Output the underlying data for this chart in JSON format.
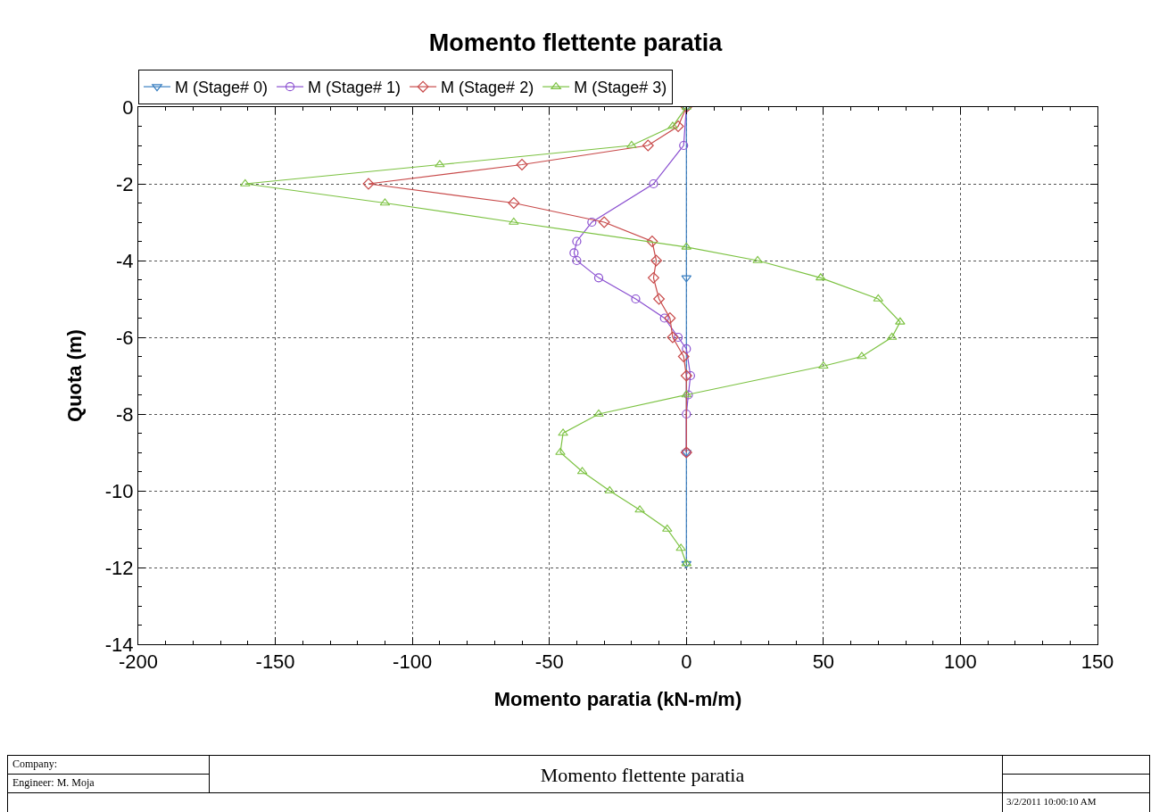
{
  "chart_data": {
    "type": "line",
    "title": "Momento flettente paratia",
    "xlabel": "Momento paratia (kN-m/m)",
    "ylabel": "Quota (m)",
    "xlim": [
      -200,
      150
    ],
    "xticks": [
      -200,
      -150,
      -100,
      -50,
      0,
      50,
      100,
      150
    ],
    "ylim": [
      -14,
      0
    ],
    "yticks": [
      -14,
      -12,
      -10,
      -8,
      -6,
      -4,
      -2,
      0
    ],
    "grid": true,
    "legend": "top",
    "line_style": "solid",
    "series": [
      {
        "name": "M (Stage# 0)",
        "color": "#3a7fc1",
        "marker": "triangle-down",
        "x": [
          0,
          0,
          0,
          0
        ],
        "values": [
          0,
          -4.45,
          -9,
          -11.9
        ]
      },
      {
        "name": "M (Stage# 1)",
        "color": "#8a4fd0",
        "marker": "circle",
        "x": [
          0,
          -1,
          -12,
          -34.5,
          -40,
          -41,
          -40,
          -32,
          -18.5,
          -8,
          -3,
          0,
          1.5,
          0.7,
          0,
          0
        ],
        "values": [
          0,
          -1,
          -2,
          -3,
          -3.5,
          -3.8,
          -4,
          -4.45,
          -5,
          -5.5,
          -6,
          -6.3,
          -7,
          -7.5,
          -8,
          -9
        ]
      },
      {
        "name": "M (Stage# 2)",
        "color": "#c84a4a",
        "marker": "diamond",
        "x": [
          0,
          -3,
          -14,
          -60,
          -116,
          -63,
          -30,
          -12.5,
          -11,
          -12,
          -10,
          -6,
          -5,
          -1,
          0,
          0
        ],
        "values": [
          0,
          -0.5,
          -1,
          -1.5,
          -2,
          -2.5,
          -3,
          -3.5,
          -4,
          -4.45,
          -5,
          -5.5,
          -6,
          -6.5,
          -7,
          -9
        ]
      },
      {
        "name": "M (Stage# 3)",
        "color": "#7cc242",
        "marker": "triangle",
        "x": [
          0,
          -5,
          -20,
          -90,
          -161,
          -110,
          -63,
          0,
          26,
          49,
          70,
          78,
          75,
          64,
          50,
          0,
          -32,
          -45,
          -46,
          -38,
          -28,
          -17,
          -7,
          -2,
          0
        ],
        "values": [
          0,
          -0.5,
          -1,
          -1.5,
          -2,
          -2.5,
          -3,
          -3.65,
          -4,
          -4.45,
          -5,
          -5.6,
          -6,
          -6.5,
          -6.75,
          -7.5,
          -8,
          -8.5,
          -9,
          -9.5,
          -10,
          -10.5,
          -11,
          -11.5,
          -11.9
        ]
      }
    ],
    "annotations": [
      "Company:",
      "Engineer: M. Moja",
      "Momento flettente paratia",
      "3/2/2011 10:00:10 AM"
    ]
  }
}
